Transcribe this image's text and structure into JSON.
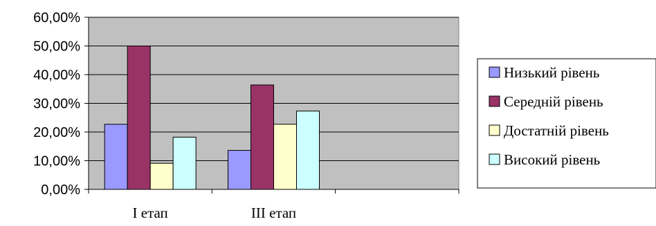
{
  "chart_data": {
    "type": "bar",
    "categories": [
      "I етап",
      "III етап",
      ""
    ],
    "series": [
      {
        "name": "Низький рівень",
        "values": [
          22.7,
          13.6,
          null
        ],
        "color": "#9999ff"
      },
      {
        "name": "Середній рівень",
        "values": [
          50.0,
          36.4,
          null
        ],
        "color": "#993366"
      },
      {
        "name": "Достатній рівень",
        "values": [
          9.1,
          22.7,
          null
        ],
        "color": "#ffffcc"
      },
      {
        "name": "Високий рівень",
        "values": [
          18.2,
          27.3,
          null
        ],
        "color": "#ccffff"
      }
    ],
    "y_ticks": [
      "0,00%",
      "10,00%",
      "20,00%",
      "30,00%",
      "40,00%",
      "50,00%",
      "60,00%"
    ],
    "ylim": [
      0,
      60
    ],
    "grid": true,
    "plot_background": "#c0c0c0",
    "legend_position": "right"
  }
}
